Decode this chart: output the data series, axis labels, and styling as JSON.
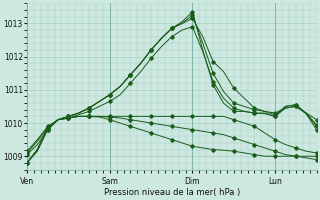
{
  "bg_color": "#cce8e0",
  "grid_color": "#aaccC4",
  "line_color": "#1a5c1a",
  "marker_color": "#1a5c1a",
  "xlabel": "Pression niveau de la mer( hPa )",
  "ylim": [
    1008.6,
    1013.6
  ],
  "yticks": [
    1009,
    1010,
    1011,
    1012,
    1013
  ],
  "xtick_labels": [
    "Ven",
    "Sam",
    "Dim",
    "Lun"
  ],
  "xtick_positions": [
    0,
    48,
    96,
    144
  ],
  "xlim": [
    0,
    168
  ],
  "series": [
    {
      "data": [
        [
          0,
          1008.8
        ],
        [
          6,
          1009.2
        ],
        [
          12,
          1009.85
        ],
        [
          18,
          1010.1
        ],
        [
          24,
          1010.2
        ],
        [
          30,
          1010.3
        ],
        [
          36,
          1010.45
        ],
        [
          42,
          1010.65
        ],
        [
          48,
          1010.85
        ],
        [
          54,
          1011.1
        ],
        [
          60,
          1011.45
        ],
        [
          66,
          1011.8
        ],
        [
          72,
          1012.2
        ],
        [
          78,
          1012.55
        ],
        [
          84,
          1012.85
        ],
        [
          90,
          1013.0
        ],
        [
          96,
          1013.15
        ],
        [
          102,
          1012.6
        ],
        [
          108,
          1011.85
        ],
        [
          114,
          1011.55
        ],
        [
          120,
          1011.05
        ],
        [
          126,
          1010.75
        ],
        [
          132,
          1010.45
        ],
        [
          138,
          1010.35
        ],
        [
          144,
          1010.3
        ],
        [
          150,
          1010.45
        ],
        [
          156,
          1010.5
        ],
        [
          162,
          1010.3
        ],
        [
          168,
          1010.1
        ]
      ]
    },
    {
      "data": [
        [
          0,
          1008.8
        ],
        [
          6,
          1009.2
        ],
        [
          12,
          1009.85
        ],
        [
          18,
          1010.1
        ],
        [
          24,
          1010.2
        ],
        [
          30,
          1010.3
        ],
        [
          36,
          1010.45
        ],
        [
          42,
          1010.65
        ],
        [
          48,
          1010.85
        ],
        [
          54,
          1011.1
        ],
        [
          60,
          1011.45
        ],
        [
          66,
          1011.8
        ],
        [
          72,
          1012.2
        ],
        [
          78,
          1012.55
        ],
        [
          84,
          1012.85
        ],
        [
          90,
          1013.0
        ],
        [
          96,
          1013.25
        ],
        [
          102,
          1012.4
        ],
        [
          108,
          1011.5
        ],
        [
          114,
          1010.95
        ],
        [
          120,
          1010.6
        ],
        [
          126,
          1010.5
        ],
        [
          132,
          1010.4
        ],
        [
          138,
          1010.35
        ],
        [
          144,
          1010.25
        ],
        [
          150,
          1010.5
        ],
        [
          156,
          1010.55
        ],
        [
          162,
          1010.3
        ],
        [
          168,
          1009.95
        ]
      ]
    },
    {
      "data": [
        [
          0,
          1008.8
        ],
        [
          6,
          1009.2
        ],
        [
          12,
          1009.85
        ],
        [
          18,
          1010.1
        ],
        [
          24,
          1010.2
        ],
        [
          30,
          1010.3
        ],
        [
          36,
          1010.45
        ],
        [
          42,
          1010.65
        ],
        [
          48,
          1010.85
        ],
        [
          54,
          1011.1
        ],
        [
          60,
          1011.45
        ],
        [
          66,
          1011.8
        ],
        [
          72,
          1012.2
        ],
        [
          78,
          1012.55
        ],
        [
          84,
          1012.85
        ],
        [
          90,
          1013.05
        ],
        [
          96,
          1013.35
        ],
        [
          102,
          1012.2
        ],
        [
          108,
          1011.15
        ],
        [
          114,
          1010.6
        ],
        [
          120,
          1010.35
        ],
        [
          126,
          1010.35
        ],
        [
          132,
          1010.3
        ],
        [
          138,
          1010.3
        ],
        [
          144,
          1010.2
        ],
        [
          150,
          1010.5
        ],
        [
          156,
          1010.55
        ],
        [
          162,
          1010.28
        ],
        [
          168,
          1009.8
        ]
      ]
    },
    {
      "data": [
        [
          0,
          1008.8
        ],
        [
          6,
          1009.15
        ],
        [
          12,
          1009.8
        ],
        [
          18,
          1010.1
        ],
        [
          24,
          1010.15
        ],
        [
          30,
          1010.25
        ],
        [
          36,
          1010.35
        ],
        [
          42,
          1010.5
        ],
        [
          48,
          1010.65
        ],
        [
          54,
          1010.85
        ],
        [
          60,
          1011.2
        ],
        [
          66,
          1011.55
        ],
        [
          72,
          1011.95
        ],
        [
          78,
          1012.3
        ],
        [
          84,
          1012.6
        ],
        [
          90,
          1012.8
        ],
        [
          96,
          1012.9
        ],
        [
          102,
          1012.15
        ],
        [
          108,
          1011.25
        ],
        [
          114,
          1010.75
        ],
        [
          120,
          1010.45
        ],
        [
          126,
          1010.35
        ],
        [
          132,
          1010.3
        ],
        [
          138,
          1010.28
        ],
        [
          144,
          1010.2
        ],
        [
          150,
          1010.45
        ],
        [
          156,
          1010.5
        ],
        [
          162,
          1010.28
        ],
        [
          168,
          1009.9
        ]
      ]
    },
    {
      "data": [
        [
          0,
          1009.05
        ],
        [
          6,
          1009.35
        ],
        [
          12,
          1009.8
        ],
        [
          18,
          1010.1
        ],
        [
          24,
          1010.15
        ],
        [
          30,
          1010.2
        ],
        [
          36,
          1010.2
        ],
        [
          42,
          1010.2
        ],
        [
          48,
          1010.2
        ],
        [
          54,
          1010.2
        ],
        [
          60,
          1010.2
        ],
        [
          66,
          1010.2
        ],
        [
          72,
          1010.2
        ],
        [
          78,
          1010.2
        ],
        [
          84,
          1010.2
        ],
        [
          90,
          1010.2
        ],
        [
          96,
          1010.2
        ],
        [
          102,
          1010.2
        ],
        [
          108,
          1010.2
        ],
        [
          114,
          1010.2
        ],
        [
          120,
          1010.1
        ],
        [
          126,
          1010.0
        ],
        [
          132,
          1009.9
        ],
        [
          138,
          1009.7
        ],
        [
          144,
          1009.5
        ],
        [
          150,
          1009.35
        ],
        [
          156,
          1009.25
        ],
        [
          162,
          1009.15
        ],
        [
          168,
          1009.1
        ]
      ]
    },
    {
      "data": [
        [
          0,
          1009.1
        ],
        [
          6,
          1009.45
        ],
        [
          12,
          1009.85
        ],
        [
          18,
          1010.1
        ],
        [
          24,
          1010.15
        ],
        [
          30,
          1010.2
        ],
        [
          36,
          1010.2
        ],
        [
          42,
          1010.2
        ],
        [
          48,
          1010.18
        ],
        [
          54,
          1010.15
        ],
        [
          60,
          1010.1
        ],
        [
          66,
          1010.05
        ],
        [
          72,
          1010.0
        ],
        [
          78,
          1009.95
        ],
        [
          84,
          1009.9
        ],
        [
          90,
          1009.85
        ],
        [
          96,
          1009.8
        ],
        [
          102,
          1009.75
        ],
        [
          108,
          1009.7
        ],
        [
          114,
          1009.65
        ],
        [
          120,
          1009.55
        ],
        [
          126,
          1009.45
        ],
        [
          132,
          1009.35
        ],
        [
          138,
          1009.25
        ],
        [
          144,
          1009.15
        ],
        [
          150,
          1009.05
        ],
        [
          156,
          1009.0
        ],
        [
          162,
          1008.95
        ],
        [
          168,
          1008.9
        ]
      ]
    },
    {
      "data": [
        [
          0,
          1009.15
        ],
        [
          6,
          1009.5
        ],
        [
          12,
          1009.9
        ],
        [
          18,
          1010.1
        ],
        [
          24,
          1010.15
        ],
        [
          30,
          1010.2
        ],
        [
          36,
          1010.2
        ],
        [
          42,
          1010.18
        ],
        [
          48,
          1010.1
        ],
        [
          54,
          1010.0
        ],
        [
          60,
          1009.9
        ],
        [
          66,
          1009.8
        ],
        [
          72,
          1009.7
        ],
        [
          78,
          1009.6
        ],
        [
          84,
          1009.5
        ],
        [
          90,
          1009.4
        ],
        [
          96,
          1009.3
        ],
        [
          102,
          1009.25
        ],
        [
          108,
          1009.2
        ],
        [
          114,
          1009.18
        ],
        [
          120,
          1009.15
        ],
        [
          126,
          1009.1
        ],
        [
          132,
          1009.05
        ],
        [
          138,
          1009.0
        ],
        [
          144,
          1009.0
        ],
        [
          150,
          1009.0
        ],
        [
          156,
          1009.0
        ],
        [
          162,
          1009.0
        ],
        [
          168,
          1009.0
        ]
      ]
    }
  ]
}
